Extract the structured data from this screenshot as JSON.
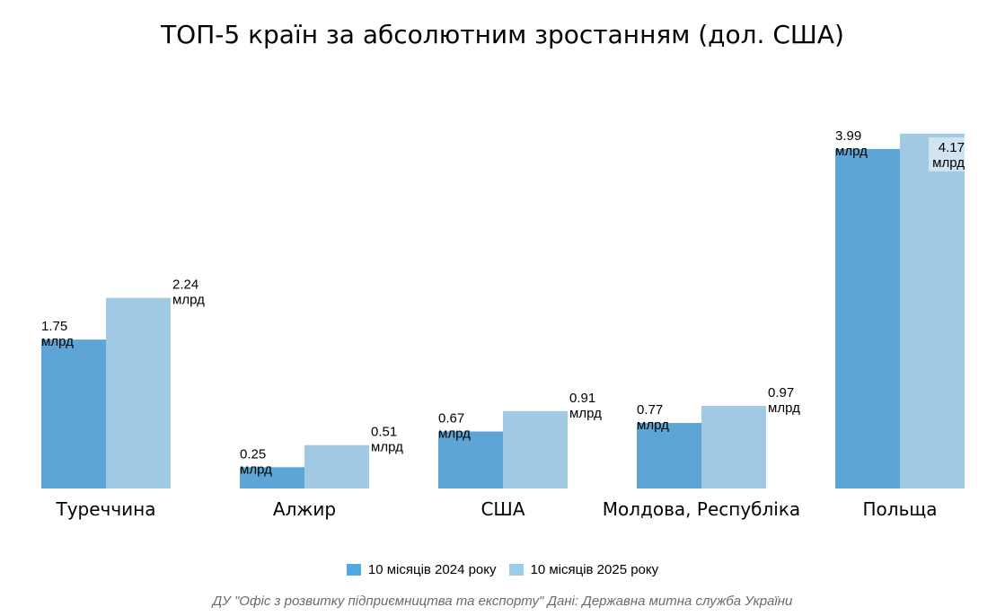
{
  "colors": {
    "series_2024": "#5da5d5",
    "series_2025": "#a2c9e3",
    "legend_2024": "#52a8e0",
    "legend_2025": "#9dcbea",
    "label_bg": "#cfe3f0"
  },
  "chart_data": {
    "type": "bar",
    "title": "ТОП-5 країн за абсолютним зростанням (дол. США)",
    "categories": [
      "Туреччина",
      "Алжир",
      "США",
      "Молдова, Республіка",
      "Польща"
    ],
    "series": [
      {
        "name": "10 місяців 2024 року",
        "values": [
          1.75,
          0.25,
          0.67,
          0.77,
          3.99
        ],
        "labels": [
          "1.75\nмлрд",
          "0.25\nмлрд",
          "0.67\nмлрд",
          "0.77\nмлрд",
          "3.99\nмлрд"
        ]
      },
      {
        "name": "10 місяців 2025 року",
        "values": [
          2.24,
          0.51,
          0.91,
          0.97,
          4.17
        ],
        "labels": [
          "2.24\nмлрд",
          "0.51\nмлрд",
          "0.91\nмлрд",
          "0.97\nмлрд",
          "4.17\nмлрд"
        ]
      }
    ],
    "unit": "млрд",
    "ylim": [
      0,
      4.2
    ],
    "grid": false,
    "legend_position": "bottom-center"
  },
  "source": "ДУ \"Офіс з розвитку підприємництва та експорту\" Дані: Державна митна служба України"
}
